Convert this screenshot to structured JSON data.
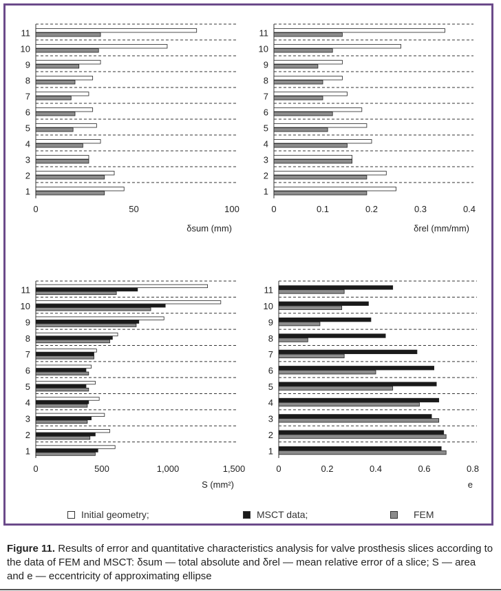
{
  "colors": {
    "frame": "#6b4a8a",
    "initial_geometry": "#ffffff",
    "msct": "#1a1a1a",
    "fem": "#8c8c8c"
  },
  "legend": {
    "initial_label": "Initial geometry;",
    "msct_label": "MSCT data;",
    "fem_label": "FEM"
  },
  "caption": {
    "label": "Figure 11.",
    "text": "Results of error and quantitative characteristics analysis for valve prosthesis slices according to the data of FEM and MSCT: δsum — total absolute and δrel — mean relative error of a slice; S — area and e — eccentricity of approximating ellipse"
  },
  "chart_data": [
    {
      "type": "bar",
      "orientation": "horizontal",
      "xlabel": "δsum (mm)",
      "xlim": [
        0,
        100
      ],
      "ticks": [
        0,
        50,
        100
      ],
      "tick_labels": [
        "0",
        "50",
        "100"
      ],
      "categories": [
        "1",
        "2",
        "3",
        "4",
        "5",
        "6",
        "7",
        "8",
        "9",
        "10",
        "11"
      ],
      "series": [
        {
          "key": "initial",
          "values": [
            45,
            40,
            27,
            33,
            31,
            29,
            27,
            29,
            33,
            67,
            82
          ]
        },
        {
          "key": "fem",
          "values": [
            35,
            35,
            27,
            24,
            19,
            20,
            18,
            20,
            22,
            32,
            33
          ]
        }
      ]
    },
    {
      "type": "bar",
      "orientation": "horizontal",
      "xlabel": "δrel (mm/mm)",
      "xlim": [
        0,
        0.4
      ],
      "ticks": [
        0,
        0.1,
        0.2,
        0.3,
        0.4
      ],
      "tick_labels": [
        "0",
        "0.1",
        "0.2",
        "0.3",
        "0.4"
      ],
      "categories": [
        "1",
        "2",
        "3",
        "4",
        "5",
        "6",
        "7",
        "8",
        "9",
        "10",
        "11"
      ],
      "series": [
        {
          "key": "initial",
          "values": [
            0.25,
            0.23,
            0.16,
            0.2,
            0.19,
            0.18,
            0.15,
            0.14,
            0.14,
            0.26,
            0.35
          ]
        },
        {
          "key": "fem",
          "values": [
            0.19,
            0.19,
            0.16,
            0.15,
            0.11,
            0.12,
            0.1,
            0.1,
            0.09,
            0.12,
            0.14
          ]
        }
      ]
    },
    {
      "type": "bar",
      "orientation": "horizontal",
      "xlabel": "S (mm²)",
      "xlim": [
        0,
        1500
      ],
      "ticks": [
        0,
        500,
        1000,
        1500
      ],
      "tick_labels": [
        "0",
        "500",
        "1,000",
        "1,500"
      ],
      "categories": [
        "1",
        "2",
        "3",
        "4",
        "5",
        "6",
        "7",
        "8",
        "9",
        "10",
        "11"
      ],
      "series": [
        {
          "key": "initial",
          "values": [
            600,
            560,
            520,
            480,
            450,
            420,
            460,
            620,
            970,
            1400,
            1300
          ]
        },
        {
          "key": "msct",
          "values": [
            470,
            450,
            420,
            400,
            380,
            380,
            440,
            580,
            780,
            980,
            770
          ]
        },
        {
          "key": "fem",
          "values": [
            450,
            410,
            390,
            390,
            400,
            400,
            440,
            560,
            760,
            870,
            610
          ]
        }
      ]
    },
    {
      "type": "bar",
      "orientation": "horizontal",
      "xlabel": "e",
      "xlim": [
        0,
        0.8
      ],
      "ticks": [
        0,
        0.2,
        0.4,
        0.6,
        0.8
      ],
      "tick_labels": [
        "0",
        "0.2",
        "0.4",
        "0.6",
        "0.8"
      ],
      "categories": [
        "1",
        "2",
        "3",
        "4",
        "5",
        "6",
        "7",
        "8",
        "9",
        "10",
        "11"
      ],
      "series": [
        {
          "key": "msct",
          "values": [
            0.67,
            0.68,
            0.63,
            0.66,
            0.65,
            0.64,
            0.57,
            0.44,
            0.38,
            0.37,
            0.47
          ]
        },
        {
          "key": "fem",
          "values": [
            0.69,
            0.69,
            0.66,
            0.58,
            0.47,
            0.4,
            0.27,
            0.12,
            0.17,
            0.26,
            0.27
          ]
        }
      ]
    }
  ]
}
